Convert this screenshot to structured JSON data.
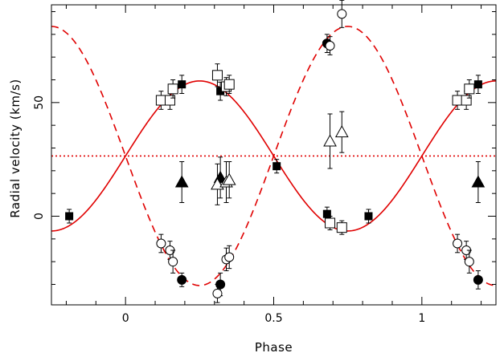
{
  "chart_data": {
    "type": "scatter",
    "xlabel": "Phase",
    "ylabel": "Radial velocity  (km/s)",
    "xlim": [
      -0.25,
      1.25
    ],
    "ylim": [
      -39,
      93
    ],
    "x_ticks": [
      0,
      0.5,
      1
    ],
    "x_tick_labels": [
      "0",
      "0.5",
      "1"
    ],
    "y_ticks": [
      0,
      50
    ],
    "y_tick_labels": [
      "0",
      "50"
    ],
    "grid": false,
    "systemic_velocity": 26.5,
    "colors": {
      "model": "#e00000",
      "points": "#000000",
      "frame": "#000000"
    },
    "curves": [
      {
        "style": "solid",
        "gamma": 26.5,
        "K": 33,
        "phase0": 0,
        "sign": 1
      },
      {
        "style": "dashed",
        "gamma": 26.5,
        "K": 57,
        "phase0": 0,
        "sign": -1
      },
      {
        "style": "dotted",
        "gamma": 26.5,
        "K": 0,
        "phase0": 0,
        "sign": 1
      }
    ],
    "series": [
      {
        "marker": "filled-square",
        "points": [
          {
            "x": -0.19,
            "y": 0,
            "err": 3
          },
          {
            "x": 0.19,
            "y": 58,
            "err": 4
          },
          {
            "x": 0.32,
            "y": 55,
            "err": 4
          },
          {
            "x": 0.51,
            "y": 22,
            "err": 3
          },
          {
            "x": 0.68,
            "y": 1,
            "err": 3
          },
          {
            "x": 0.82,
            "y": 0,
            "err": 3
          },
          {
            "x": 1.19,
            "y": 58,
            "err": 4
          }
        ]
      },
      {
        "marker": "open-square",
        "points": [
          {
            "x": 0.12,
            "y": 51,
            "err": 4
          },
          {
            "x": 0.15,
            "y": 51,
            "err": 4
          },
          {
            "x": 0.16,
            "y": 56,
            "err": 4
          },
          {
            "x": 0.31,
            "y": 62,
            "err": 5
          },
          {
            "x": 0.34,
            "y": 57,
            "err": 4
          },
          {
            "x": 0.35,
            "y": 58,
            "err": 4
          },
          {
            "x": 0.69,
            "y": -3,
            "err": 3
          },
          {
            "x": 0.73,
            "y": -5,
            "err": 3
          },
          {
            "x": 1.12,
            "y": 51,
            "err": 4
          },
          {
            "x": 1.15,
            "y": 51,
            "err": 4
          },
          {
            "x": 1.16,
            "y": 56,
            "err": 4
          }
        ]
      },
      {
        "marker": "filled-circle",
        "points": [
          {
            "x": 0.19,
            "y": -28,
            "err": 3
          },
          {
            "x": 0.32,
            "y": -30,
            "err": 5
          },
          {
            "x": 0.68,
            "y": 76,
            "err": 4
          },
          {
            "x": 1.19,
            "y": -28,
            "err": 4
          }
        ]
      },
      {
        "marker": "open-circle",
        "points": [
          {
            "x": 0.12,
            "y": -12,
            "err": 4
          },
          {
            "x": 0.15,
            "y": -15,
            "err": 4
          },
          {
            "x": 0.16,
            "y": -20,
            "err": 5
          },
          {
            "x": 0.31,
            "y": -34,
            "err": 4
          },
          {
            "x": 0.34,
            "y": -19,
            "err": 5
          },
          {
            "x": 0.35,
            "y": -18,
            "err": 5
          },
          {
            "x": 0.69,
            "y": 75,
            "err": 4
          },
          {
            "x": 0.73,
            "y": 89,
            "err": 6
          },
          {
            "x": 1.12,
            "y": -12,
            "err": 4
          },
          {
            "x": 1.15,
            "y": -15,
            "err": 4
          },
          {
            "x": 1.16,
            "y": -20,
            "err": 5
          }
        ]
      },
      {
        "marker": "filled-triangle",
        "points": [
          {
            "x": 0.19,
            "y": 15,
            "err": 9
          },
          {
            "x": 0.32,
            "y": 17,
            "err": 9
          },
          {
            "x": 1.19,
            "y": 15,
            "err": 9
          }
        ]
      },
      {
        "marker": "open-triangle",
        "points": [
          {
            "x": 0.31,
            "y": 14,
            "err": 9
          },
          {
            "x": 0.34,
            "y": 15,
            "err": 9
          },
          {
            "x": 0.35,
            "y": 16,
            "err": 8
          },
          {
            "x": 0.69,
            "y": 33,
            "err": 12
          },
          {
            "x": 0.73,
            "y": 37,
            "err": 9
          }
        ]
      }
    ]
  }
}
